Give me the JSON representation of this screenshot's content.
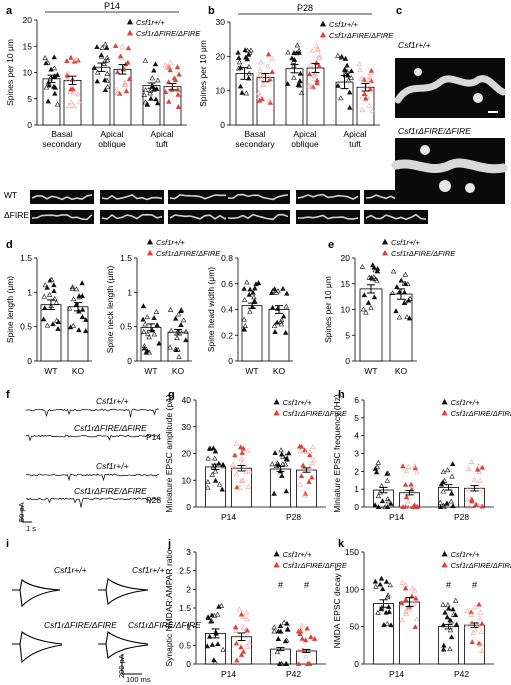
{
  "colors": {
    "wt": "#111111",
    "ko": "#e0403a",
    "ko_light": "#f3a29d"
  },
  "labels": {
    "a": "a",
    "b": "b",
    "c": "c",
    "d": "d",
    "e": "e",
    "f": "f",
    "g": "g",
    "h": "h",
    "i": "i",
    "j": "j",
    "k": "k",
    "legend_wt": "Csf1r+/+",
    "legend_ko": "Csf1rΔFIRE/ΔFIRE",
    "wt_row": "WT",
    "fire_row": "ΔFIRE",
    "c_wt": "Csf1r+/+",
    "c_ko": "Csf1rΔFIRE/ΔFIRE",
    "f_trace1": "Csf1r+/+",
    "f_trace2": "Csf1rΔFIRE/ΔFIRE",
    "f_trace3": "Csf1r+/+",
    "f_trace4": "Csf1rΔFIRE/ΔFIRE",
    "f_p14": "P14",
    "f_p28": "P28",
    "f_scale_v": "50 pA",
    "f_scale_h": "1 s",
    "i_t1": "Csf1r+/+",
    "i_t2": "Csf1r+/+",
    "i_t3": "Csf1rΔFIRE/ΔFIRE",
    "i_t4": "Csf1rΔFIRE/ΔFIRE",
    "i_scale_v": "200 pA",
    "i_scale_h": "100 ms"
  },
  "chart_data": [
    {
      "panel": "a",
      "type": "bar",
      "title": "P14",
      "categories": [
        "Basal secondary",
        "Apical oblique",
        "Apical tuft"
      ],
      "ylabel": "Spines per 10 μm",
      "ylim": [
        0,
        20
      ],
      "yticks": [
        0,
        5,
        10,
        15,
        20
      ],
      "series": [
        {
          "name": "Csf1r+/+",
          "values": [
            8.8,
            11.0,
            7.5
          ],
          "errors": [
            0.7,
            0.8,
            0.5
          ]
        },
        {
          "name": "Csf1rΔFIRE/ΔFIRE",
          "values": [
            8.5,
            10.6,
            7.3
          ],
          "errors": [
            0.8,
            0.9,
            0.6
          ]
        }
      ]
    },
    {
      "panel": "b",
      "type": "bar",
      "title": "P28",
      "categories": [
        "Basal secondary",
        "Apical oblique",
        "Apical tuft"
      ],
      "ylabel": "Spines per 10 μm",
      "ylim": [
        0,
        30
      ],
      "yticks": [
        0,
        10,
        20,
        30
      ],
      "series": [
        {
          "name": "Csf1r+/+",
          "values": [
            15.0,
            16.4,
            12.5
          ],
          "errors": [
            1.7,
            1.2,
            1.9
          ]
        },
        {
          "name": "Csf1rΔFIRE/ΔFIRE",
          "values": [
            13.8,
            16.6,
            11.0
          ],
          "errors": [
            1.2,
            1.3,
            1.1
          ]
        }
      ]
    },
    {
      "panel": "d1",
      "type": "bar",
      "categories": [
        "WT",
        "KO"
      ],
      "ylabel": "Spine length (μm)",
      "ylim": [
        0,
        1.5
      ],
      "yticks": [
        0,
        0.5,
        1.0,
        1.5
      ],
      "values": [
        0.82,
        0.79
      ],
      "errors": [
        0.07,
        0.06
      ]
    },
    {
      "panel": "d2",
      "type": "bar",
      "categories": [
        "WT",
        "KO"
      ],
      "ylabel": "Spine neck length (μm)",
      "ylim": [
        0,
        1.5
      ],
      "yticks": [
        0,
        0.5,
        1.0,
        1.5
      ],
      "values": [
        0.49,
        0.42
      ],
      "errors": [
        0.05,
        0.04
      ]
    },
    {
      "panel": "d3",
      "type": "bar",
      "categories": [
        "WT",
        "KO"
      ],
      "ylabel": "Spine head width (μm)",
      "ylim": [
        0,
        0.8
      ],
      "yticks": [
        0,
        0.2,
        0.4,
        0.6,
        0.8
      ],
      "values": [
        0.43,
        0.4
      ],
      "errors": [
        0.02,
        0.03
      ]
    },
    {
      "panel": "e",
      "type": "bar",
      "categories": [
        "WT",
        "KO"
      ],
      "ylabel": "Spines per 10 μm",
      "ylim": [
        0,
        20
      ],
      "yticks": [
        0,
        5,
        10,
        15,
        20
      ],
      "values": [
        14.0,
        13.0
      ],
      "errors": [
        0.8,
        1.0
      ]
    },
    {
      "panel": "g",
      "type": "bar",
      "categories": [
        "P14",
        "P28"
      ],
      "ylabel": "Miniature EPSC amplitude (pA)",
      "ylim": [
        0,
        40
      ],
      "yticks": [
        0,
        10,
        20,
        30,
        40
      ],
      "series": [
        {
          "name": "Csf1r+/+",
          "values": [
            15.0,
            14.2
          ],
          "errors": [
            1.0,
            0.9
          ]
        },
        {
          "name": "Csf1rΔFIRE/ΔFIRE",
          "values": [
            14.5,
            13.8
          ],
          "errors": [
            1.0,
            0.8
          ]
        }
      ]
    },
    {
      "panel": "h",
      "type": "bar",
      "categories": [
        "P14",
        "P28"
      ],
      "ylabel": "Miniature EPSC frequency (Hz)",
      "ylim": [
        0,
        6
      ],
      "yticks": [
        0,
        1,
        2,
        3,
        4,
        5,
        6
      ],
      "series": [
        {
          "name": "Csf1r+/+",
          "values": [
            0.95,
            1.1
          ],
          "errors": [
            0.15,
            0.15
          ]
        },
        {
          "name": "Csf1rΔFIRE/ΔFIRE",
          "values": [
            0.8,
            1.05
          ],
          "errors": [
            0.12,
            0.15
          ]
        }
      ]
    },
    {
      "panel": "j",
      "type": "bar",
      "categories": [
        "P14",
        "P42"
      ],
      "ylabel": "Synaptic NMDAR:AMPAR ratio",
      "ylim": [
        0,
        3.0
      ],
      "yticks": [
        0,
        0.5,
        1.0,
        1.5,
        2.0,
        2.5,
        3.0
      ],
      "annotations": [
        "#",
        "#"
      ],
      "series": [
        {
          "name": "Csf1r+/+",
          "values": [
            0.82,
            0.4
          ],
          "errors": [
            0.12,
            0.04
          ]
        },
        {
          "name": "Csf1rΔFIRE/ΔFIRE",
          "values": [
            0.73,
            0.35
          ],
          "errors": [
            0.1,
            0.04
          ]
        }
      ]
    },
    {
      "panel": "k",
      "type": "bar",
      "categories": [
        "P14",
        "P42"
      ],
      "ylabel": "NMDA EPSC decay τ",
      "ylim": [
        0,
        150
      ],
      "yticks": [
        0,
        50,
        100,
        150
      ],
      "annotations": [
        "#",
        "#"
      ],
      "series": [
        {
          "name": "Csf1r+/+",
          "values": [
            81,
            50
          ],
          "errors": [
            5,
            3
          ]
        },
        {
          "name": "Csf1rΔFIRE/ΔFIRE",
          "values": [
            83,
            52
          ],
          "errors": [
            6,
            3
          ]
        }
      ]
    }
  ]
}
